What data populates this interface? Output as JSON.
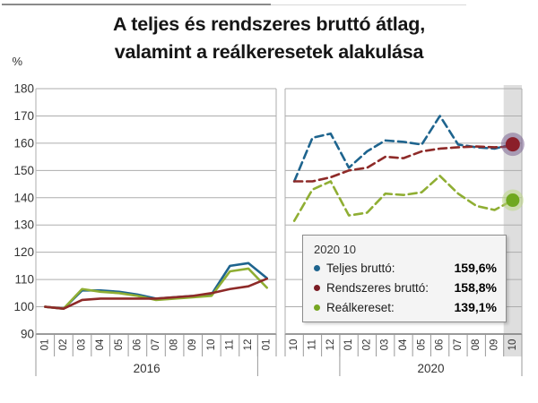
{
  "title": {
    "line1": "A teljes és rendszeres bruttó átlag,",
    "line2": "valamint a reálkeresetek alakulása"
  },
  "y_axis": {
    "unit": "%",
    "ticks": [
      180,
      170,
      160,
      150,
      140,
      130,
      120,
      110,
      100,
      90
    ],
    "min": 90,
    "max": 180,
    "grid": true
  },
  "legend": {
    "header": "2020 10",
    "items": [
      {
        "label": "Teljes bruttó:",
        "value": "159,6%",
        "color": "#1e648e"
      },
      {
        "label": "Rendszeres bruttó:",
        "value": "158,8%",
        "color": "#7b1c24"
      },
      {
        "label": "Reálkereset:",
        "value": "139,1%",
        "color": "#76a622"
      }
    ]
  },
  "colors": {
    "teljes": "#1e648e",
    "rendszeres": "#8e2a28",
    "real": "#8fae33",
    "gridline": "#adadad",
    "axis": "#7a7a7a",
    "cell_line": "#999999",
    "band": "#d8d8d8",
    "tick_text": "#333333"
  },
  "chart_data": [
    {
      "type": "line",
      "panel": "left",
      "year_label": "2016",
      "year_span": [
        0,
        11
      ],
      "line_style": "solid",
      "categories": [
        "01",
        "02",
        "03",
        "04",
        "05",
        "06",
        "07",
        "08",
        "09",
        "10",
        "11",
        "12",
        "01"
      ],
      "ylim": [
        90,
        180
      ],
      "series": [
        {
          "name": "Teljes bruttó",
          "color_key": "teljes",
          "values": [
            100,
            99.3,
            106,
            106,
            105.5,
            104.5,
            103,
            103.5,
            104,
            104.5,
            115,
            116,
            110.5
          ]
        },
        {
          "name": "Reálkereset",
          "color_key": "real",
          "values": [
            100,
            99.3,
            106.5,
            105.5,
            105,
            104,
            102.5,
            103,
            103.5,
            104,
            113,
            114,
            107
          ]
        },
        {
          "name": "Rendszeres bruttó",
          "color_key": "rendszeres",
          "values": [
            100,
            99.3,
            102.5,
            103,
            103,
            103,
            103,
            103.5,
            104,
            105,
            106.5,
            107.5,
            110.3
          ]
        }
      ]
    },
    {
      "type": "line",
      "panel": "right",
      "year_label": "2020",
      "year_span": [
        3,
        12
      ],
      "line_style": "dashed",
      "highlight_last": true,
      "categories": [
        "10",
        "11",
        "12",
        "01",
        "02",
        "03",
        "04",
        "05",
        "06",
        "07",
        "08",
        "09",
        "10"
      ],
      "ylim": [
        90,
        180
      ],
      "series": [
        {
          "name": "Teljes bruttó",
          "color_key": "teljes",
          "values": [
            146,
            162,
            163.5,
            151,
            157,
            161,
            160.5,
            159.5,
            170,
            159.5,
            158.5,
            158,
            159.6
          ]
        },
        {
          "name": "Reálkereset",
          "color_key": "real",
          "values": [
            131.5,
            143,
            146,
            133.5,
            134.5,
            141.5,
            141,
            142,
            148,
            141.5,
            137,
            135.5,
            139.1
          ]
        },
        {
          "name": "Rendszeres bruttó",
          "color_key": "rendszeres",
          "values": [
            146,
            146,
            147.5,
            150,
            151,
            155,
            154.5,
            157,
            158,
            158.5,
            158.8,
            158.5,
            158.8
          ]
        }
      ],
      "end_markers": [
        {
          "value": 159.6,
          "core_color": "#8b1f2a",
          "halo_color": "#71588a"
        },
        {
          "value": 139.1,
          "core_color": "#6fa81f",
          "halo_color": "#b9d77d"
        }
      ]
    }
  ]
}
